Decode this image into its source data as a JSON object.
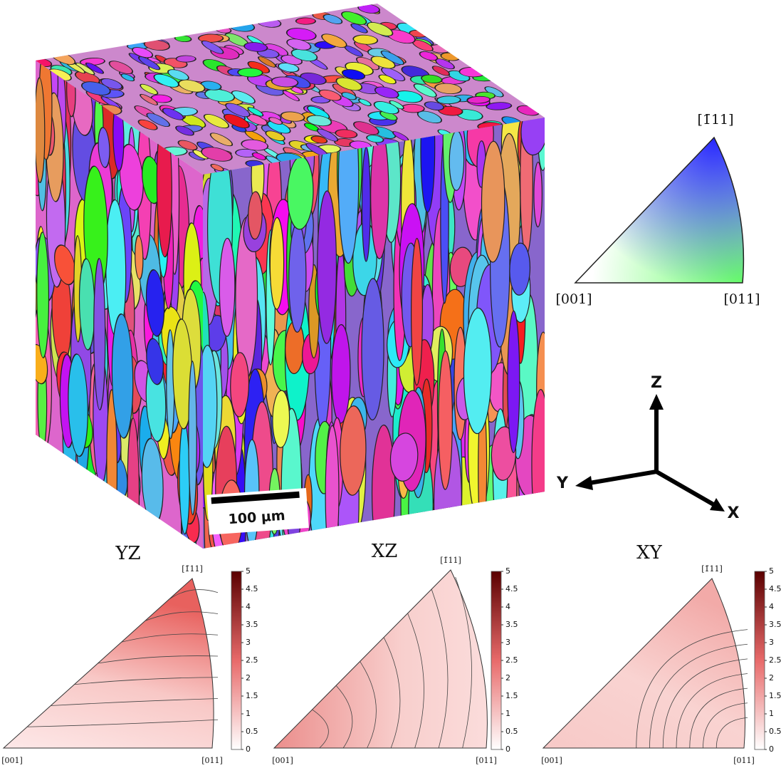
{
  "cube": {
    "scale_bar": "100 µm"
  },
  "ipf_key": {
    "corners": [
      "[001]",
      "[011]",
      "[1̄11]"
    ]
  },
  "axes": {
    "z": "Z",
    "y": "Y",
    "x": "X"
  },
  "pole_figures": [
    {
      "title": "YZ",
      "corners": [
        "[001]",
        "[011]",
        "[1̄11]"
      ]
    },
    {
      "title": "XZ",
      "corners": [
        "[001]",
        "[011]",
        "[1̄11]"
      ]
    },
    {
      "title": "XY",
      "corners": [
        "[001]",
        "[011]",
        "[1̄11]"
      ]
    }
  ],
  "colorbar": {
    "ylim": [
      0,
      5
    ],
    "ticks": [
      0,
      0.5,
      1,
      1.5,
      2,
      2.5,
      3,
      3.5,
      4,
      4.5,
      5
    ]
  }
}
